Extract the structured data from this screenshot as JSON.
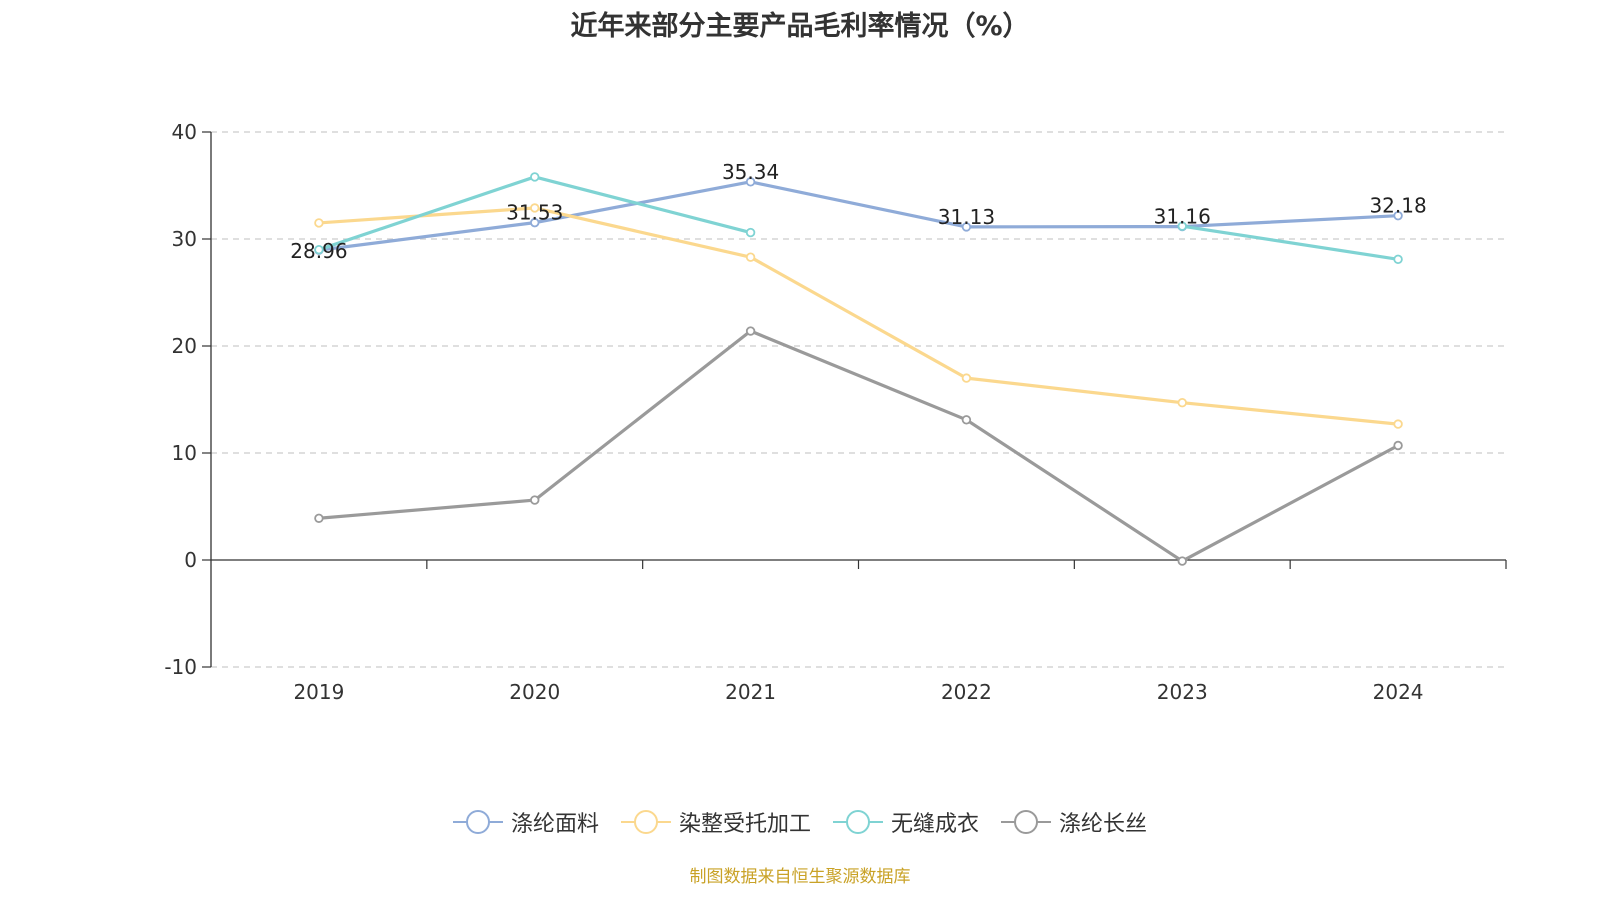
{
  "title": "近年来部分主要产品毛利率情况（%）",
  "source_note": "制图数据来自恒生聚源数据库",
  "colors": {
    "axis": "#333333",
    "grid": "#cccccc"
  },
  "chart_data": {
    "type": "line",
    "title": "近年来部分主要产品毛利率情况（%）",
    "categories": [
      "2019",
      "2020",
      "2021",
      "2022",
      "2023",
      "2024"
    ],
    "ylim": [
      -10,
      40
    ],
    "yticks": [
      -10,
      0,
      10,
      20,
      30,
      40
    ],
    "grid": true,
    "legend_position": "bottom",
    "series": [
      {
        "name": "涤纶面料",
        "color": "#8fabd8",
        "values": [
          28.96,
          31.53,
          35.34,
          31.13,
          31.16,
          32.18
        ],
        "labels": [
          "28.96",
          "31.53",
          "35.34",
          "31.13",
          "31.16",
          "32.18"
        ]
      },
      {
        "name": "染整受托加工",
        "color": "#fbd88e",
        "values": [
          31.5,
          32.9,
          28.3,
          17.0,
          14.7,
          12.7
        ]
      },
      {
        "name": "无缝成衣",
        "color": "#7fd3d3",
        "values": [
          29.0,
          35.8,
          30.6,
          null,
          31.2,
          28.1
        ]
      },
      {
        "name": "涤纶长丝",
        "color": "#9a9a9a",
        "values": [
          3.9,
          5.6,
          21.4,
          13.1,
          -0.1,
          10.7
        ]
      }
    ]
  }
}
